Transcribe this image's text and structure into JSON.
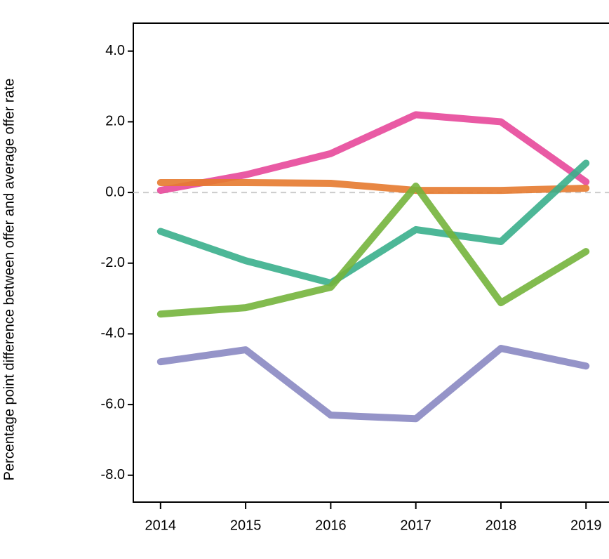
{
  "chart_data": {
    "type": "line",
    "y_label": "Percentage point difference between offer and average offer rate",
    "x": [
      2014,
      2015,
      2016,
      2017,
      2018,
      2019
    ],
    "xlim": [
      2013.68,
      2019.27
    ],
    "xticks": [
      2014,
      2015,
      2016,
      2017,
      2018,
      2019
    ],
    "ylim": [
      -8.76,
      4.79
    ],
    "yticks": [
      {
        "value": 4,
        "label": "4.0"
      },
      {
        "value": 2,
        "label": "2.0"
      },
      {
        "value": 0,
        "label": "0.0"
      },
      {
        "value": -2,
        "label": "-2.0"
      },
      {
        "value": -4,
        "label": "-4.0"
      },
      {
        "value": -6,
        "label": "-6.0"
      },
      {
        "value": -8,
        "label": "-8.0"
      }
    ],
    "reference_line": 0,
    "series": [
      {
        "color": "#e7489a",
        "values": [
          0.06,
          0.5,
          1.1,
          2.2,
          2.0,
          0.3
        ]
      },
      {
        "color": "#e57a2f",
        "values": [
          0.28,
          0.28,
          0.26,
          0.06,
          0.06,
          0.12
        ]
      },
      {
        "color": "#3aaf8c",
        "values": [
          -1.1,
          -1.93,
          -2.56,
          -1.05,
          -1.39,
          0.83
        ]
      },
      {
        "color": "#74b43c",
        "values": [
          -3.44,
          -3.26,
          -2.68,
          0.18,
          -3.12,
          -1.67
        ]
      },
      {
        "color": "#8a88c2",
        "values": [
          -4.79,
          -4.45,
          -6.3,
          -6.4,
          -4.41,
          -4.91
        ]
      }
    ]
  }
}
